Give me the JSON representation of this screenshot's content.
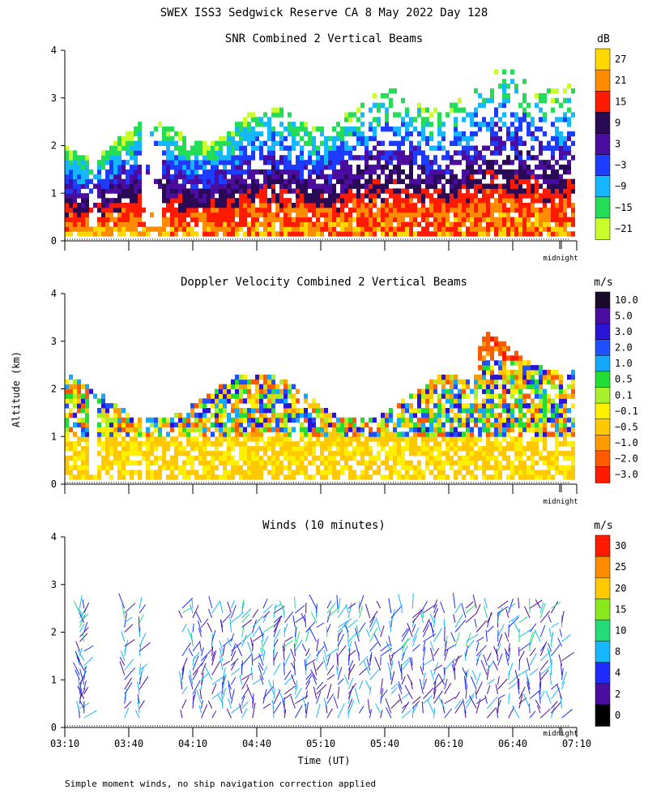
{
  "figure": {
    "title": "SWEX ISS3 Sedgwick Reserve CA   8 May 2022 Day 128",
    "ylabel": "Altitude (km)",
    "xlabel": "Time (UT)",
    "footnote": "Simple moment winds, no ship navigation correction applied",
    "x_ticks": [
      "03:10",
      "03:40",
      "04:10",
      "04:40",
      "05:10",
      "05:40",
      "06:10",
      "06:40",
      "07:10"
    ],
    "y_ticks": [
      "0",
      "1",
      "2",
      "3",
      "4"
    ],
    "midnight_label": "midnight"
  },
  "chart_data": [
    {
      "type": "heatmap",
      "title": "SNR Combined 2 Vertical Beams",
      "unit": "dB",
      "xlim": [
        "03:10",
        "07:10"
      ],
      "ylim": [
        0,
        4
      ],
      "colorbar": {
        "labels": [
          "27",
          "21",
          "15",
          "9",
          "3",
          "−3",
          "−9",
          "−15",
          "−21"
        ],
        "colors": [
          "#ffd800",
          "#ff8c00",
          "#ff1a00",
          "#2a0a55",
          "#4b0ca0",
          "#1e3cff",
          "#15b7ff",
          "#22dd55",
          "#c8ff2a"
        ]
      },
      "regions": [
        {
          "description_level": "-21",
          "alt_km": [
            1.9,
            3.9
          ]
        },
        {
          "description_level": "-15",
          "alt_km": [
            1.5,
            2.3
          ]
        },
        {
          "description_level": "-9",
          "alt_km": [
            1.2,
            2.0
          ]
        },
        {
          "description_level": "-3",
          "alt_km": [
            0.8,
            1.6
          ]
        },
        {
          "description_level": "3",
          "alt_km": [
            0.3,
            1.2
          ]
        },
        {
          "description_level": "9",
          "alt_km": [
            0.1,
            0.9
          ]
        },
        {
          "description_level": "15",
          "alt_km": [
            0.1,
            0.6
          ]
        }
      ]
    },
    {
      "type": "heatmap",
      "title": "Doppler Velocity Combined 2 Vertical Beams",
      "unit": "m/s",
      "xlim": [
        "03:10",
        "07:10"
      ],
      "ylim": [
        0,
        4
      ],
      "colorbar": {
        "labels": [
          "10.0",
          "5.0",
          "3.0",
          "2.0",
          "1.0",
          "0.5",
          "0.1",
          "−0.1",
          "−0.5",
          "−1.0",
          "−2.0",
          "−3.0"
        ],
        "colors": [
          "#1a0a2a",
          "#4b0ca0",
          "#2a14d8",
          "#1e50ff",
          "#15a8ff",
          "#22dd33",
          "#a8f02a",
          "#fff000",
          "#ffc800",
          "#ff9a00",
          "#ff5a00",
          "#ff1a00"
        ]
      },
      "regions": [
        {
          "description_level": "-0.1",
          "alt_km": [
            0.1,
            1.0
          ]
        },
        {
          "description_level": "-1.0",
          "alt_km": [
            0.8,
            2.3
          ]
        },
        {
          "description_level": "1.0",
          "alt_km": [
            1.2,
            2.0
          ]
        },
        {
          "description_level": "-2.0",
          "alt_km": [
            2.6,
            3.0
          ]
        }
      ]
    },
    {
      "type": "scatter",
      "title": "Winds (10 minutes)",
      "unit": "m/s",
      "xlim": [
        "03:10",
        "07:10"
      ],
      "ylim": [
        0,
        4
      ],
      "colorbar": {
        "labels": [
          "30",
          "25",
          "20",
          "15",
          "10",
          "8",
          "4",
          "2",
          "0"
        ],
        "colors": [
          "#ff1a00",
          "#ff8c00",
          "#ffc800",
          "#88e81a",
          "#22dd77",
          "#15b7ff",
          "#1e2cff",
          "#4b0ca0",
          "#000000"
        ]
      },
      "profile_times": [
        "03:17",
        "03:19",
        "03:38",
        "03:45",
        "04:05",
        "04:10",
        "04:14",
        "04:19",
        "04:24",
        "04:28",
        "04:33",
        "04:38",
        "04:43",
        "04:48",
        "04:53",
        "04:58",
        "05:03",
        "05:08",
        "05:13",
        "05:18",
        "05:23",
        "05:28",
        "05:33",
        "05:38",
        "05:43",
        "05:48",
        "05:53",
        "05:58",
        "06:03",
        "06:08",
        "06:13",
        "06:18",
        "06:23",
        "06:28",
        "06:33",
        "06:38",
        "06:43",
        "06:48",
        "06:53",
        "06:58",
        "07:03"
      ]
    }
  ]
}
